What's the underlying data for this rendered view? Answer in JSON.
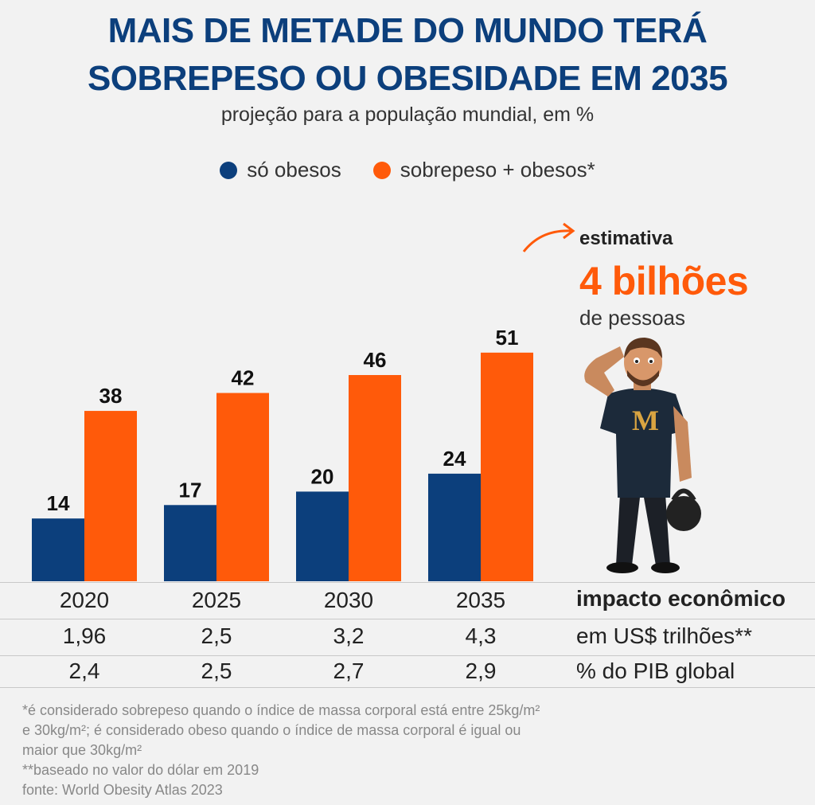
{
  "title_line1": "MAIS DE METADE DO MUNDO TERÁ",
  "title_line2": "SOBREPESO OU OBESIDADE EM 2035",
  "subtitle": "projeção para a população mundial, em %",
  "legend": {
    "obese": "só obesos",
    "overweight": "sobrepeso + obesos*"
  },
  "colors": {
    "obese": "#0c3f7c",
    "overweight": "#ff5a0a",
    "title": "#0c3f7c"
  },
  "chart_data": {
    "type": "bar",
    "title": "MAIS DE METADE DO MUNDO TERÁ SOBREPESO OU OBESIDADE EM 2035",
    "subtitle": "projeção para a população mundial, em %",
    "categories": [
      "2020",
      "2025",
      "2030",
      "2035"
    ],
    "series": [
      {
        "name": "só obesos",
        "values": [
          14,
          17,
          20,
          24
        ]
      },
      {
        "name": "sobrepeso + obesos*",
        "values": [
          38,
          42,
          46,
          51
        ]
      }
    ],
    "ylim": [
      0,
      60
    ],
    "grid": false,
    "legend_position": "top"
  },
  "callout": {
    "label": "estimativa",
    "value": "4 bilhões",
    "unit": "de pessoas"
  },
  "illustration": "worried-man-with-kettlebell",
  "table": {
    "header_label": "impacto econômico",
    "rows": [
      {
        "label": "em US$ trilhões**",
        "values": [
          "1,96",
          "2,5",
          "3,2",
          "4,3"
        ]
      },
      {
        "label": "% do PIB global",
        "values": [
          "2,4",
          "2,5",
          "2,7",
          "2,9"
        ]
      }
    ]
  },
  "notes": [
    "*é considerado sobrepeso quando o índice de massa corporal está entre 25kg/m²",
    "e 30kg/m²; é considerado obeso quando o índice de massa corporal é igual ou",
    "maior que 30kg/m²",
    "**baseado no valor do dólar em 2019",
    "fonte: World Obesity Atlas 2023"
  ]
}
